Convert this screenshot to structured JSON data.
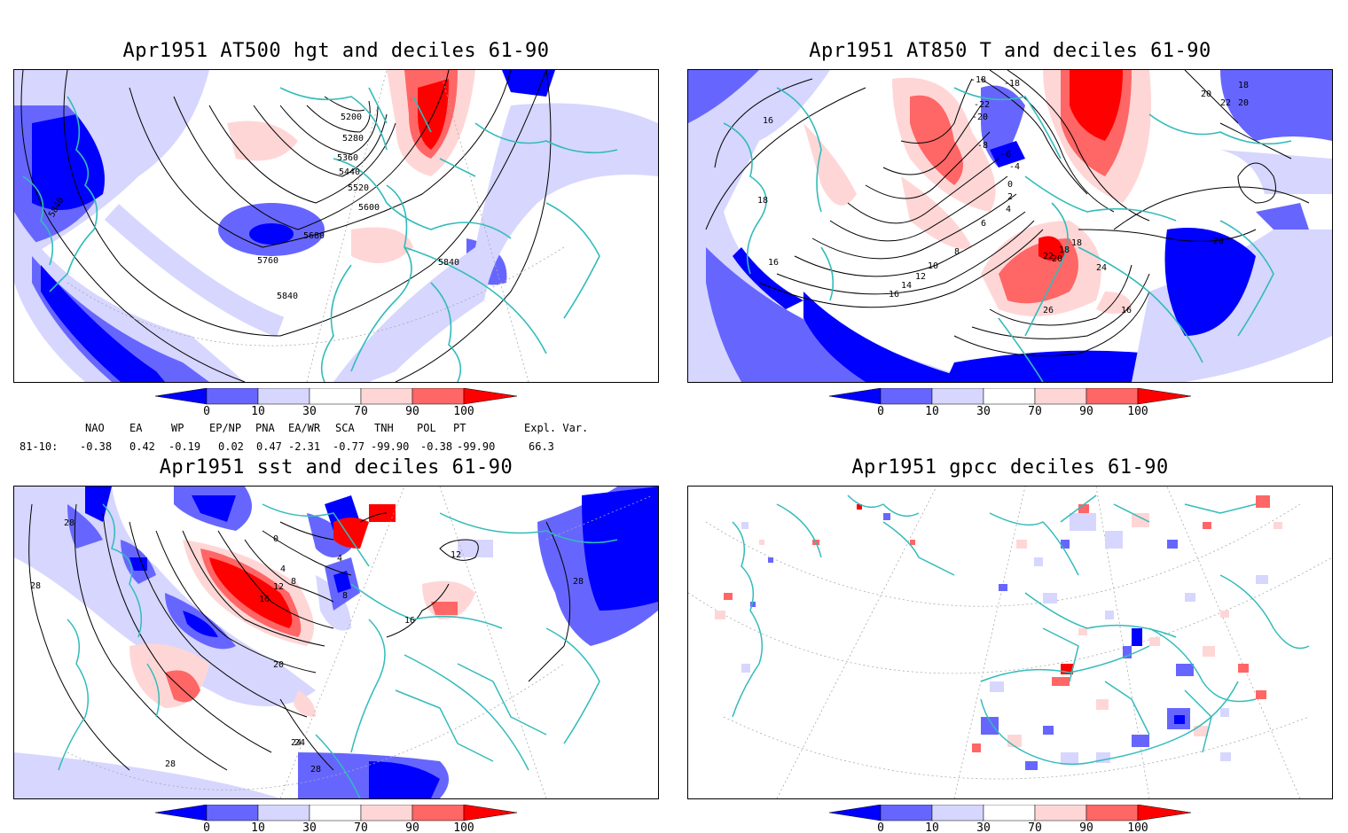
{
  "panels": [
    {
      "title": "Apr1951 AT500 hgt and deciles 61-90",
      "contour_labels": [
        "5200",
        "5280",
        "5360",
        "5440",
        "5520",
        "5600",
        "5680",
        "5760",
        "5840",
        "5840",
        "5840"
      ]
    },
    {
      "title": "Apr1951 AT850 T and deciles 61-90",
      "contour_labels": [
        "-18",
        "-18",
        "-22",
        "-20",
        "-6",
        "-8",
        "-4",
        "0",
        "2",
        "4",
        "6",
        "8",
        "10",
        "12",
        "14",
        "16",
        "18",
        "18",
        "20",
        "22",
        "24",
        "26",
        "16",
        "18",
        "20",
        "22",
        "20",
        "20",
        "18",
        "16",
        "16"
      ]
    },
    {
      "title": "Apr1951 sst and deciles 61-90",
      "contour_labels": [
        "28",
        "28",
        "0",
        "4",
        "8",
        "12",
        "16",
        "20",
        "24",
        "28",
        "28",
        "4",
        "8",
        "16",
        "12",
        "24",
        "28"
      ]
    },
    {
      "title": "Apr1951 gpcc deciles 61-90",
      "contour_labels": []
    }
  ],
  "colorbar": {
    "tick_labels": [
      "0",
      "10",
      "30",
      "70",
      "90",
      "100"
    ],
    "colors": [
      "#0000ff",
      "#6666ff",
      "#d6d6ff",
      "#ffffff",
      "#ffd6d6",
      "#ff6666",
      "#ff0000"
    ]
  },
  "indices": {
    "headers": [
      "NAO",
      "EA",
      "WP",
      "EP/NP",
      "PNA",
      "EA/WR",
      "SCA",
      "TNH",
      "POL",
      "PT",
      "Expl. Var."
    ],
    "row_label": "81-10:",
    "values": [
      "-0.38",
      "0.42",
      "-0.19",
      "0.02",
      "0.47",
      "-2.31",
      "-0.77",
      "-99.90",
      "-0.38",
      "-99.90",
      "66.3"
    ]
  },
  "colors": {
    "coast": "#33bbbb",
    "deep_blue": "#0000ff",
    "mid_blue": "#6666ff",
    "light_blue": "#d6d6ff",
    "light_red": "#ffd6d6",
    "mid_red": "#ff6666",
    "deep_red": "#ff0000"
  }
}
